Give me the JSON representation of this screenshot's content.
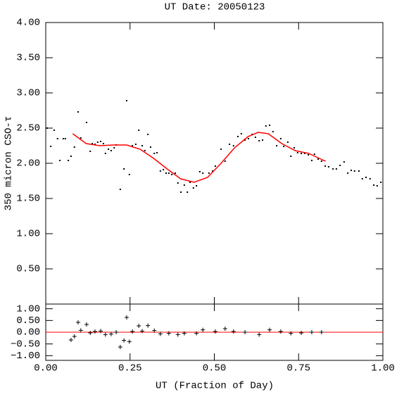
{
  "chart_data": [
    {
      "type": "scatter",
      "title": "UT Date: 20050123",
      "ylabel": "350 micron CSO-τ",
      "xlim": [
        0,
        1
      ],
      "xticks": [
        0,
        0.25,
        0.5,
        0.75,
        1
      ],
      "ylim": [
        0,
        4
      ],
      "yticks": [
        {
          "value": 0.5,
          "label": "0.50"
        },
        {
          "value": 1,
          "label": "1.00"
        },
        {
          "value": 1.5,
          "label": "1.50"
        },
        {
          "value": 2,
          "label": "2.00"
        },
        {
          "value": 2.5,
          "label": "2.50"
        },
        {
          "value": 3,
          "label": "3.00"
        },
        {
          "value": 3.5,
          "label": "3.50"
        },
        {
          "value": 4,
          "label": "4.00"
        }
      ],
      "series": [
        {
          "style": "points",
          "marker": "dot",
          "color": "#000000",
          "x": [
            0.004,
            0.015,
            0.025,
            0.035,
            0.042,
            0.052,
            0.058,
            0.067,
            0.075,
            0.085,
            0.096,
            0.104,
            0.121,
            0.132,
            0.138,
            0.146,
            0.154,
            0.163,
            0.171,
            0.177,
            0.186,
            0.194,
            0.203,
            0.209,
            0.221,
            0.232,
            0.24,
            0.248,
            0.257,
            0.267,
            0.276,
            0.286,
            0.294,
            0.303,
            0.311,
            0.322,
            0.33,
            0.34,
            0.349,
            0.357,
            0.365,
            0.374,
            0.384,
            0.392,
            0.401,
            0.411,
            0.42,
            0.428,
            0.438,
            0.447,
            0.457,
            0.466,
            0.484,
            0.495,
            0.503,
            0.52,
            0.532,
            0.545,
            0.557,
            0.57,
            0.58,
            0.591,
            0.601,
            0.612,
            0.622,
            0.633,
            0.643,
            0.653,
            0.664,
            0.674,
            0.685,
            0.697,
            0.706,
            0.718,
            0.727,
            0.737,
            0.747,
            0.758,
            0.768,
            0.779,
            0.789,
            0.797,
            0.808,
            0.818,
            0.829,
            0.839,
            0.852,
            0.862,
            0.873,
            0.885,
            0.896,
            0.906,
            0.916,
            0.929,
            0.939,
            0.95,
            0.962,
            0.973,
            0.983,
            0.994
          ],
          "values": [
            2.5,
            2.24,
            2.47,
            2.35,
            2.04,
            2.35,
            2.35,
            2.04,
            2.1,
            2.23,
            2.73,
            2.36,
            2.58,
            2.17,
            2.28,
            2.27,
            2.3,
            2.31,
            2.28,
            2.14,
            2.2,
            2.18,
            2.22,
            2.26,
            1.63,
            1.92,
            2.89,
            1.84,
            2.25,
            2.27,
            2.47,
            2.25,
            2.18,
            2.41,
            2.23,
            2.14,
            2.15,
            1.89,
            1.91,
            1.86,
            1.86,
            1.84,
            1.86,
            1.72,
            1.59,
            1.69,
            1.59,
            1.73,
            1.65,
            1.68,
            1.88,
            1.86,
            1.86,
            1.89,
            1.96,
            2.2,
            2.03,
            2.27,
            2.25,
            2.38,
            2.42,
            2.33,
            2.35,
            2.41,
            2.37,
            2.32,
            2.33,
            2.53,
            2.54,
            2.45,
            2.25,
            2.35,
            2.24,
            2.3,
            2.1,
            2.22,
            2.15,
            2.14,
            2.14,
            2.12,
            2.04,
            2.13,
            2.06,
            2.03,
            1.96,
            1.95,
            1.92,
            1.92,
            1.97,
            2.02,
            1.86,
            1.9,
            1.89,
            1.89,
            1.78,
            1.8,
            1.78,
            1.69,
            1.68,
            1.73
          ]
        },
        {
          "style": "line",
          "color": "#ff0000",
          "x": [
            0.08,
            0.12,
            0.16,
            0.2,
            0.24,
            0.28,
            0.32,
            0.36,
            0.4,
            0.44,
            0.48,
            0.52,
            0.56,
            0.6,
            0.63,
            0.66,
            0.7,
            0.74,
            0.78,
            0.82,
            0.83
          ],
          "values": [
            2.42,
            2.28,
            2.25,
            2.26,
            2.26,
            2.2,
            2.07,
            1.92,
            1.78,
            1.73,
            1.8,
            2.0,
            2.22,
            2.38,
            2.44,
            2.42,
            2.28,
            2.18,
            2.14,
            2.05,
            2.03
          ]
        }
      ]
    },
    {
      "type": "scatter",
      "xlabel": "UT (Fraction of Day)",
      "xlim": [
        0,
        1
      ],
      "xticks": [
        {
          "value": 0,
          "label": "0.00"
        },
        {
          "value": 0.25,
          "label": "0.25"
        },
        {
          "value": 0.5,
          "label": "0.50"
        },
        {
          "value": 0.75,
          "label": "0.75"
        },
        {
          "value": 1,
          "label": "1.00"
        }
      ],
      "ylim": [
        -1.2,
        1.2
      ],
      "yticks": [
        {
          "value": -1,
          "label": "−1.00"
        },
        {
          "value": -0.5,
          "label": "−0.50"
        },
        {
          "value": 0,
          "label": "0.00"
        },
        {
          "value": 0.5,
          "label": "0.50"
        },
        {
          "value": 1,
          "label": "1.00"
        }
      ],
      "hline": 0,
      "hline_color": "#ff0000",
      "series": [
        {
          "style": "points",
          "marker": "plus",
          "color": "#000000",
          "x": [
            0.075,
            0.085,
            0.096,
            0.104,
            0.121,
            0.132,
            0.146,
            0.163,
            0.177,
            0.194,
            0.209,
            0.221,
            0.232,
            0.24,
            0.248,
            0.257,
            0.276,
            0.286,
            0.303,
            0.322,
            0.34,
            0.365,
            0.392,
            0.411,
            0.447,
            0.466,
            0.503,
            0.532,
            0.557,
            0.591,
            0.633,
            0.664,
            0.697,
            0.727,
            0.758,
            0.789,
            0.818
          ],
          "values": [
            -0.33,
            -0.18,
            0.42,
            0.08,
            0.33,
            -0.03,
            0.03,
            0.05,
            -0.1,
            -0.08,
            0.0,
            -0.63,
            -0.35,
            0.63,
            -0.4,
            0.03,
            0.27,
            0.05,
            0.28,
            0.07,
            -0.07,
            -0.05,
            -0.1,
            -0.05,
            -0.05,
            0.1,
            0.03,
            0.15,
            0.03,
            0.0,
            -0.1,
            0.1,
            0.03,
            -0.05,
            -0.03,
            0.0,
            0.0
          ]
        }
      ]
    }
  ]
}
